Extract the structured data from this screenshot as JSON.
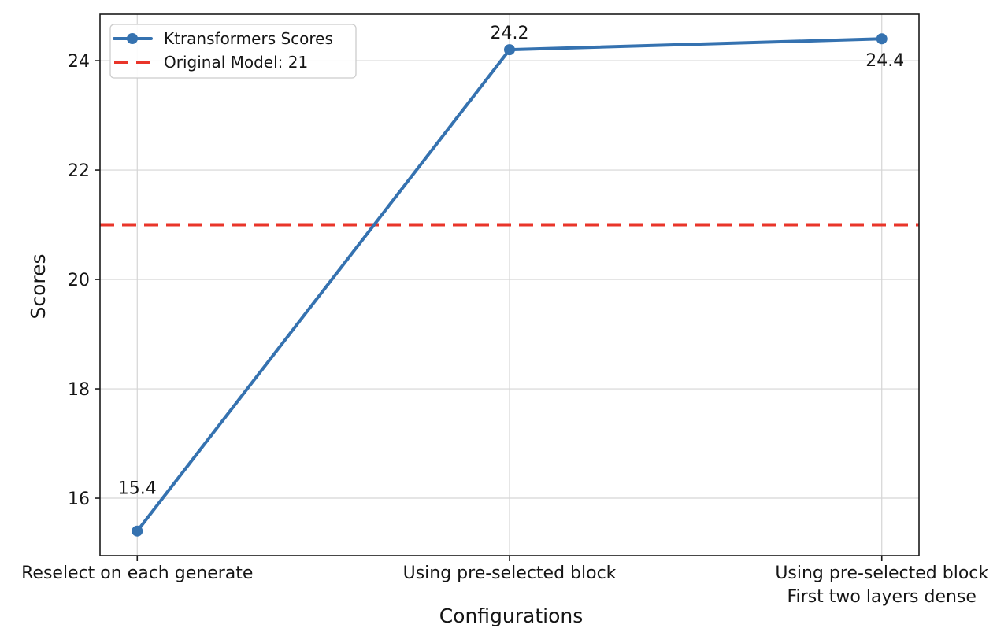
{
  "chart_data": {
    "type": "line",
    "title": "",
    "xlabel": "Configurations",
    "ylabel": "Scores",
    "categories": [
      "Reselect on each generate",
      "Using pre-selected block",
      "Using pre-selected block\nFirst two layers dense"
    ],
    "series": [
      {
        "name": "Ktransformers Scores",
        "values": [
          15.4,
          24.2,
          24.4
        ],
        "point_labels": [
          "15.4",
          "24.2",
          "24.4"
        ],
        "color": "#3572b0",
        "marker": "circle"
      }
    ],
    "reference_line": {
      "label": "Original Model: 21",
      "value": 21,
      "color": "#e9352a",
      "style": "dashed"
    },
    "ytick_labels": [
      "16",
      "18",
      "20",
      "22",
      "24"
    ],
    "ytick_values": [
      16,
      18,
      20,
      22,
      24
    ],
    "ylim": [
      14.95,
      24.85
    ],
    "xlim": [
      -0.1,
      2.1
    ],
    "grid": true,
    "legend": {
      "position": "upper-left",
      "entries": [
        {
          "label": "Ktransformers Scores",
          "color": "#3572b0",
          "style": "solid-marker"
        },
        {
          "label": "Original Model: 21",
          "color": "#e9352a",
          "style": "dashed"
        }
      ]
    }
  },
  "colors": {
    "background": "#ffffff",
    "text": "#151515",
    "grid": "#d5d5d5",
    "spine": "#1a1a1a",
    "legend_border": "#cccccc",
    "legend_fill": "#ffffff"
  }
}
